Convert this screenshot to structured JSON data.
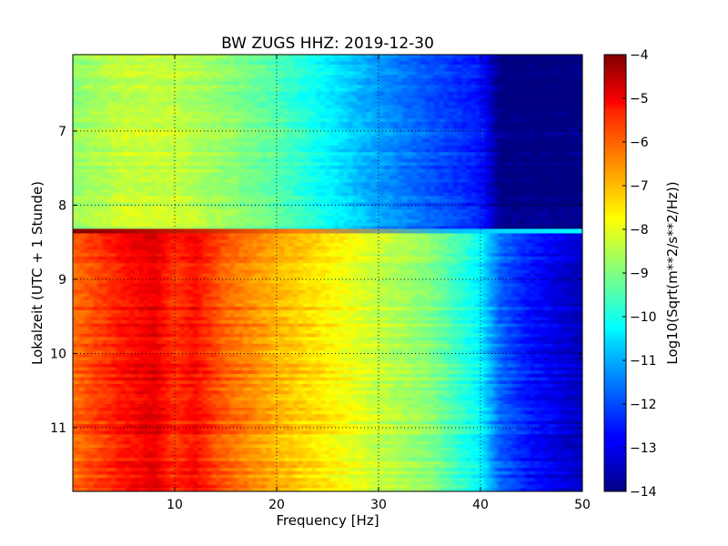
{
  "chart_data": {
    "type": "heatmap",
    "title": "BW ZUGS HHZ: 2019-12-30",
    "xlabel": "Frequency [Hz]",
    "ylabel": "Lokalzeit (UTC + 1 Stunde)",
    "xlim": [
      0,
      50
    ],
    "ylim": [
      5.97,
      11.86
    ],
    "y_inverted": true,
    "xticks": [
      10,
      20,
      30,
      40,
      50
    ],
    "yticks": [
      7,
      8,
      9,
      10,
      11
    ],
    "grid": true,
    "colormap": "jet",
    "colorbar": {
      "label": "Log10(Sqrt(m**2/s**2/Hz))",
      "range": [
        -14,
        -4
      ],
      "ticks": [
        -4,
        -5,
        -6,
        -7,
        -8,
        -9,
        -10,
        -11,
        -12,
        -13,
        -14
      ]
    },
    "segments": [
      {
        "time_range": [
          5.97,
          8.33
        ],
        "frequency_hz": [
          0,
          5,
          10,
          15,
          20,
          25,
          30,
          35,
          40,
          42,
          45,
          50
        ],
        "log10_amplitude": [
          -8.8,
          -8.3,
          -8.3,
          -8.8,
          -9.4,
          -10.3,
          -11.2,
          -11.9,
          -12.5,
          -14,
          -14,
          -14
        ]
      },
      {
        "time_range": [
          8.33,
          11.86
        ],
        "frequency_hz": [
          0,
          5,
          8,
          10,
          12,
          15,
          20,
          25,
          30,
          35,
          40,
          42,
          45,
          50
        ],
        "log10_amplitude": [
          -6.3,
          -5.4,
          -5.0,
          -5.7,
          -5.3,
          -6.2,
          -7.0,
          -7.6,
          -8.3,
          -8.9,
          -10.3,
          -11.8,
          -12.6,
          -13.4
        ]
      }
    ],
    "transition_line": {
      "time": 8.35,
      "note": "thin horizontal band at segment boundary"
    }
  }
}
